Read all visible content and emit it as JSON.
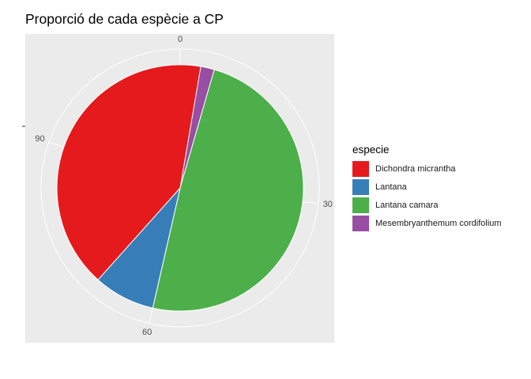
{
  "chart_data": {
    "type": "pie",
    "title": "Proporció de cada espècie a CP",
    "legend_title": "especie",
    "legend_position": "right",
    "scale_max": 112,
    "ticks": [
      "0",
      "30",
      "60",
      "90"
    ],
    "tick_values": [
      0,
      30,
      60,
      90
    ],
    "categories": [
      "Dichondra micrantha",
      "Lantana",
      "Lantana camara",
      "Mesembryanthemum cordifolium"
    ],
    "values": [
      46,
      9,
      55,
      5
    ],
    "colors": [
      "#E41A1C",
      "#377EB8",
      "#4DAF4A",
      "#984EA3"
    ],
    "panel_background": "#EBEBEB",
    "grid": true
  }
}
